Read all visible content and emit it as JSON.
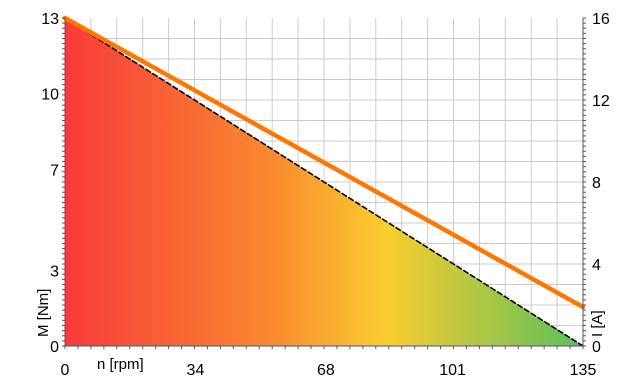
{
  "chart_data": {
    "type": "line",
    "xlabel": "n [rpm]",
    "ylabel_left": "M [Nm]",
    "ylabel_right": "I [A]",
    "x_ticks": [
      0,
      34,
      68,
      101,
      135
    ],
    "y_left_ticks": [
      0,
      3,
      7,
      10,
      13
    ],
    "y_right_ticks": [
      0,
      4,
      8,
      12,
      16
    ],
    "xlim": [
      0,
      135
    ],
    "ylim_left": [
      0,
      13
    ],
    "ylim_right": [
      0,
      16
    ],
    "grid": true,
    "gradient_colors": [
      "#f83a3a",
      "#fa8a30",
      "#fbcd2f",
      "#5cbf5c"
    ],
    "series": [
      {
        "axis": "left",
        "style": "dashed",
        "color": "#000000",
        "x": [
          0,
          135
        ],
        "y": [
          13,
          0
        ]
      },
      {
        "axis": "right",
        "style": "solid",
        "color": "#ff7700",
        "x": [
          0,
          135
        ],
        "y": [
          16,
          1.9
        ]
      }
    ]
  }
}
